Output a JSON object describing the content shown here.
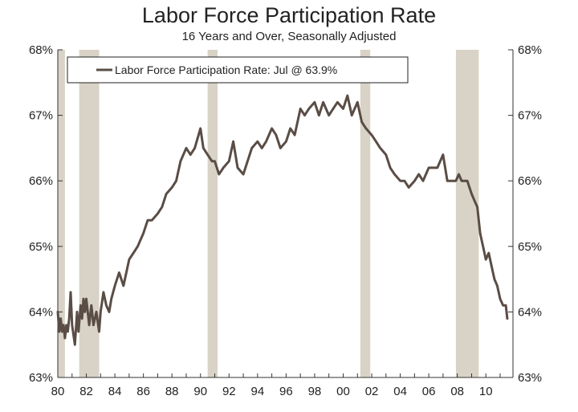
{
  "chart_data": {
    "type": "line",
    "title": "Labor Force Participation Rate",
    "subtitle": "16 Years and Over, Seasonally Adjusted",
    "legend": {
      "label": "Labor Force Participation Rate: Jul @ 63.9%",
      "placement": "top-left"
    },
    "x_tick_labels": [
      "80",
      "82",
      "84",
      "86",
      "88",
      "90",
      "92",
      "94",
      "96",
      "98",
      "00",
      "02",
      "04",
      "06",
      "08",
      "10"
    ],
    "y_tick_labels": [
      "63%",
      "64%",
      "65%",
      "66%",
      "67%",
      "68%"
    ],
    "xlim": [
      1980.0,
      2011.9
    ],
    "ylim": [
      63,
      68
    ],
    "grid": false,
    "colors": {
      "line": "#5a4d45",
      "recession": "#d8d3c6",
      "axis": "#333333"
    },
    "recession_periods": [
      {
        "start": 1980.0,
        "end": 1980.5
      },
      {
        "start": 1981.5,
        "end": 1982.9
      },
      {
        "start": 1990.5,
        "end": 1991.2
      },
      {
        "start": 2001.2,
        "end": 2001.9
      },
      {
        "start": 2007.9,
        "end": 2009.5
      }
    ],
    "series": [
      {
        "name": "Labor Force Participation Rate",
        "x": [
          1980.0,
          1980.1,
          1980.2,
          1980.3,
          1980.4,
          1980.5,
          1980.6,
          1980.7,
          1980.8,
          1980.9,
          1981.0,
          1981.2,
          1981.35,
          1981.45,
          1981.6,
          1981.7,
          1981.8,
          1981.9,
          1982.0,
          1982.2,
          1982.35,
          1982.5,
          1982.7,
          1982.9,
          1983.0,
          1983.2,
          1983.4,
          1983.6,
          1983.75,
          1984.0,
          1984.3,
          1984.6,
          1985.0,
          1985.3,
          1985.6,
          1986.0,
          1986.3,
          1986.6,
          1987.0,
          1987.3,
          1987.6,
          1988.0,
          1988.3,
          1988.6,
          1989.0,
          1989.3,
          1989.6,
          1990.0,
          1990.2,
          1990.5,
          1990.8,
          1991.0,
          1991.3,
          1991.6,
          1992.0,
          1992.3,
          1992.6,
          1993.0,
          1993.3,
          1993.6,
          1994.0,
          1994.3,
          1994.6,
          1995.0,
          1995.3,
          1995.6,
          1996.0,
          1996.3,
          1996.6,
          1997.0,
          1997.3,
          1997.6,
          1998.0,
          1998.3,
          1998.6,
          1999.0,
          1999.3,
          1999.6,
          2000.0,
          2000.3,
          2000.6,
          2001.0,
          2001.3,
          2001.6,
          2002.0,
          2002.3,
          2002.6,
          2003.0,
          2003.3,
          2003.6,
          2004.0,
          2004.3,
          2004.6,
          2005.0,
          2005.3,
          2005.6,
          2006.0,
          2006.3,
          2006.6,
          2007.0,
          2007.3,
          2007.6,
          2007.9,
          2008.1,
          2008.3,
          2008.5,
          2008.7,
          2009.0,
          2009.2,
          2009.4,
          2009.6,
          2009.8,
          2010.0,
          2010.2,
          2010.4,
          2010.6,
          2010.8,
          2011.0,
          2011.2,
          2011.4,
          2011.5
        ],
        "values": [
          64.0,
          63.7,
          63.9,
          63.7,
          63.8,
          63.6,
          63.8,
          63.7,
          63.9,
          64.3,
          63.8,
          63.5,
          64.0,
          63.7,
          64.1,
          63.9,
          64.2,
          64.0,
          64.2,
          63.8,
          64.1,
          63.8,
          64.0,
          63.7,
          64.0,
          64.3,
          64.1,
          64.0,
          64.2,
          64.4,
          64.6,
          64.4,
          64.8,
          64.9,
          65.0,
          65.2,
          65.4,
          65.4,
          65.5,
          65.6,
          65.8,
          65.9,
          66.0,
          66.3,
          66.5,
          66.4,
          66.5,
          66.8,
          66.5,
          66.4,
          66.3,
          66.3,
          66.1,
          66.2,
          66.3,
          66.6,
          66.2,
          66.1,
          66.3,
          66.5,
          66.6,
          66.5,
          66.6,
          66.8,
          66.7,
          66.5,
          66.6,
          66.8,
          66.7,
          67.1,
          67.0,
          67.1,
          67.2,
          67.0,
          67.2,
          67.0,
          67.1,
          67.2,
          67.1,
          67.3,
          67.0,
          67.2,
          66.9,
          66.8,
          66.7,
          66.6,
          66.5,
          66.4,
          66.2,
          66.1,
          66.0,
          66.0,
          65.9,
          66.0,
          66.1,
          66.0,
          66.2,
          66.2,
          66.2,
          66.4,
          66.0,
          66.0,
          66.0,
          66.1,
          66.0,
          66.0,
          66.0,
          65.8,
          65.7,
          65.6,
          65.2,
          65.0,
          64.8,
          64.9,
          64.7,
          64.5,
          64.4,
          64.2,
          64.1,
          64.1,
          63.9
        ]
      }
    ]
  }
}
